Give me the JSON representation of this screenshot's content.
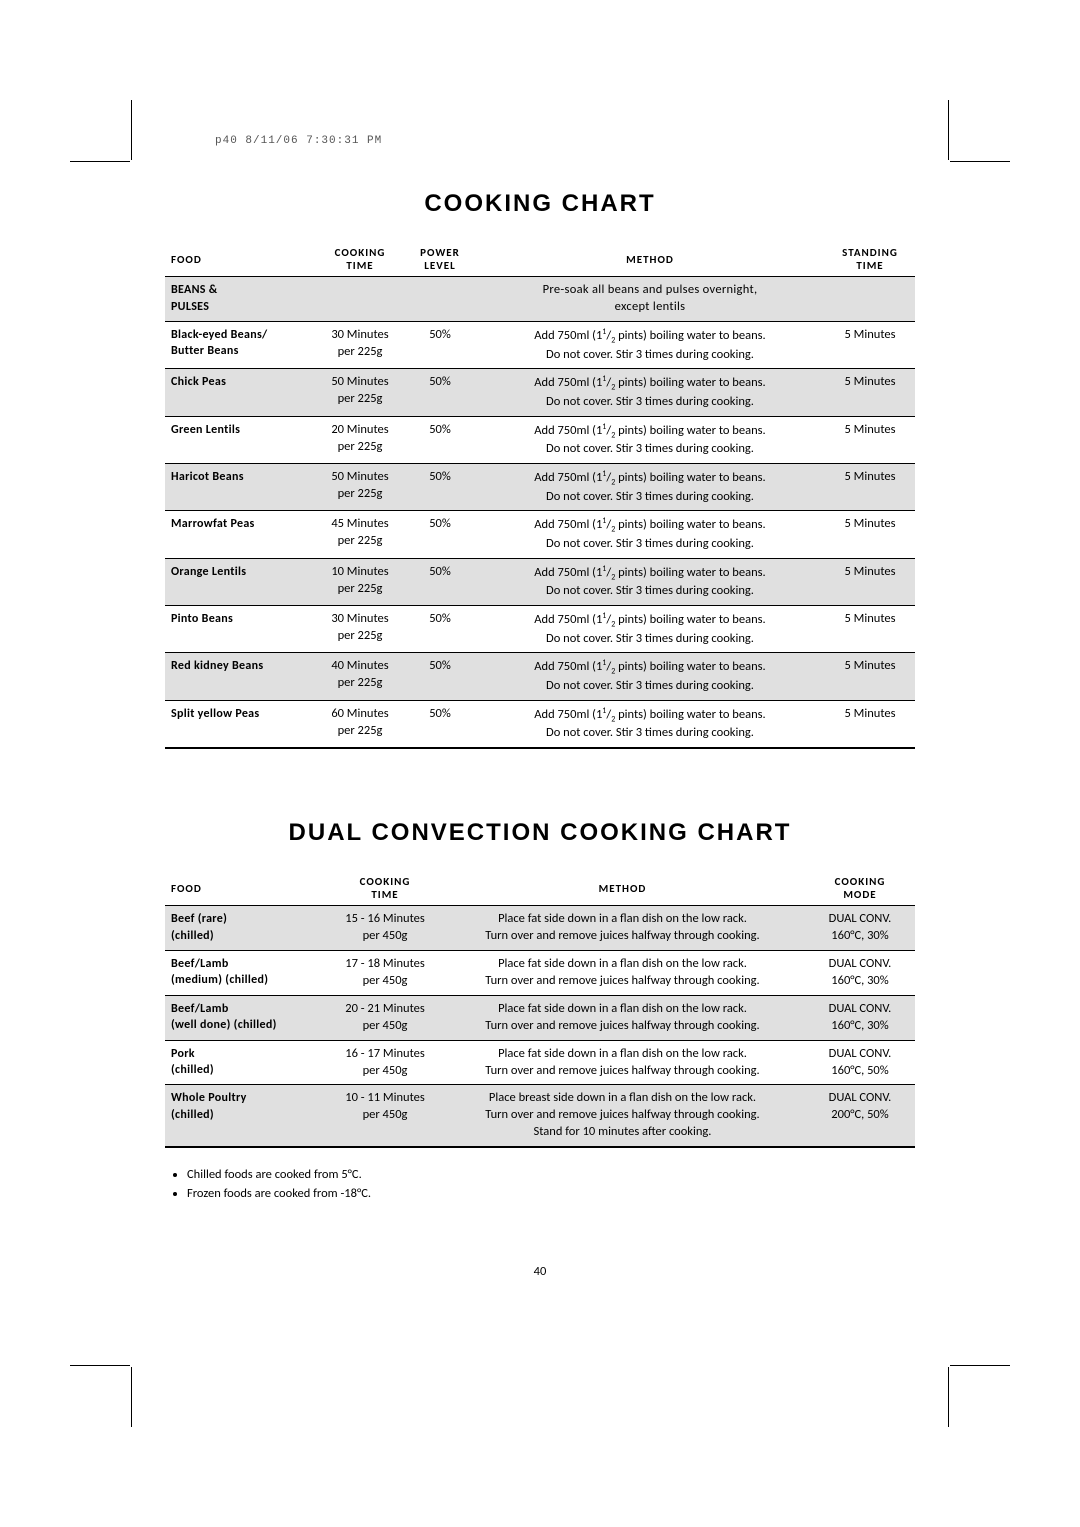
{
  "slug": "p40  8/11/06  7:30:31 PM",
  "page_number": "40",
  "chart1": {
    "title": "COOKING CHART",
    "headers": [
      "FOOD",
      "COOKING\nTIME",
      "POWER\nLEVEL",
      "METHOD",
      "STANDING\nTIME"
    ],
    "section": {
      "label": "BEANS &\nPULSES",
      "note": "Pre-soak all beans and pulses overnight,\nexcept lentils"
    },
    "rows": [
      {
        "food": "Black-eyed Beans/\nButter Beans",
        "time": "30 Minutes\nper 225g",
        "power": "50%",
        "method": "Add 750ml (1½ pints) boiling water to beans.\nDo not cover. Stir 3 times during cooking.",
        "stand": "5 Minutes"
      },
      {
        "food": "Chick Peas",
        "time": "50 Minutes\nper 225g",
        "power": "50%",
        "method": "Add 750ml (1½ pints) boiling water to beans.\nDo not cover. Stir 3 times during cooking.",
        "stand": "5 Minutes"
      },
      {
        "food": "Green Lentils",
        "time": "20 Minutes\nper 225g",
        "power": "50%",
        "method": "Add 750ml (1½ pints) boiling water to beans.\nDo not cover. Stir 3 times during cooking.",
        "stand": "5 Minutes"
      },
      {
        "food": "Haricot Beans",
        "time": "50 Minutes\nper 225g",
        "power": "50%",
        "method": "Add 750ml (1½ pints) boiling water to beans.\nDo not cover. Stir 3 times during cooking.",
        "stand": "5 Minutes"
      },
      {
        "food": "Marrowfat Peas",
        "time": "45 Minutes\nper 225g",
        "power": "50%",
        "method": "Add 750ml (1½ pints) boiling water to beans.\nDo not cover. Stir 3 times during cooking.",
        "stand": "5 Minutes"
      },
      {
        "food": "Orange Lentils",
        "time": "10 Minutes\nper 225g",
        "power": "50%",
        "method": "Add 750ml (1½ pints) boiling water to beans.\nDo not cover. Stir 3 times during cooking.",
        "stand": "5 Minutes"
      },
      {
        "food": "Pinto Beans",
        "time": "30 Minutes\nper 225g",
        "power": "50%",
        "method": "Add 750ml (1½ pints) boiling water to beans.\nDo not cover. Stir 3 times during cooking.",
        "stand": "5 Minutes"
      },
      {
        "food": "Red kidney Beans",
        "time": "40 Minutes\nper 225g",
        "power": "50%",
        "method": "Add 750ml (1½ pints) boiling water to beans.\nDo not cover. Stir 3 times during cooking.",
        "stand": "5 Minutes"
      },
      {
        "food": "Split yellow Peas",
        "time": "60 Minutes\nper 225g",
        "power": "50%",
        "method": "Add 750ml (1½ pints) boiling water to beans.\nDo not cover. Stir 3 times during cooking.",
        "stand": "5 Minutes"
      }
    ]
  },
  "chart2": {
    "title": "DUAL CONVECTION COOKING CHART",
    "headers": [
      "FOOD",
      "COOKING\nTIME",
      "METHOD",
      "COOKING\nMODE"
    ],
    "rows": [
      {
        "food": "Beef (rare)\n(chilled)",
        "time": "15 - 16 Minutes\nper 450g",
        "method": "Place fat side down in a flan dish on the low rack.\nTurn over and remove juices halfway through cooking.",
        "mode": "DUAL CONV.\n160°C, 30%"
      },
      {
        "food": "Beef/Lamb\n(medium) (chilled)",
        "time": "17 - 18 Minutes\nper 450g",
        "method": "Place fat side down in a flan dish on the low rack.\nTurn over and remove juices halfway through cooking.",
        "mode": "DUAL CONV.\n160°C, 30%"
      },
      {
        "food": "Beef/Lamb\n(well done) (chilled)",
        "time": "20 - 21 Minutes\nper 450g",
        "method": "Place fat side down in a flan dish on the low rack.\nTurn over and remove juices halfway through cooking.",
        "mode": "DUAL CONV.\n160°C, 30%"
      },
      {
        "food": "Pork\n(chilled)",
        "time": "16 - 17 Minutes\nper 450g",
        "method": "Place fat side down in a flan dish on the low rack.\nTurn over and remove juices halfway through cooking.",
        "mode": "DUAL CONV.\n160°C, 50%"
      },
      {
        "food": "Whole Poultry\n(chilled)",
        "time": "10 - 11 Minutes\nper 450g",
        "method": "Place breast side down in a flan dish on the low rack.\nTurn over and remove juices halfway through cooking.\nStand for 10 minutes after cooking.",
        "mode": "DUAL CONV.\n200°C, 50%"
      }
    ]
  },
  "notes": [
    "Chilled foods are cooked from 5°C.",
    "Frozen foods are cooked from -18°C."
  ]
}
